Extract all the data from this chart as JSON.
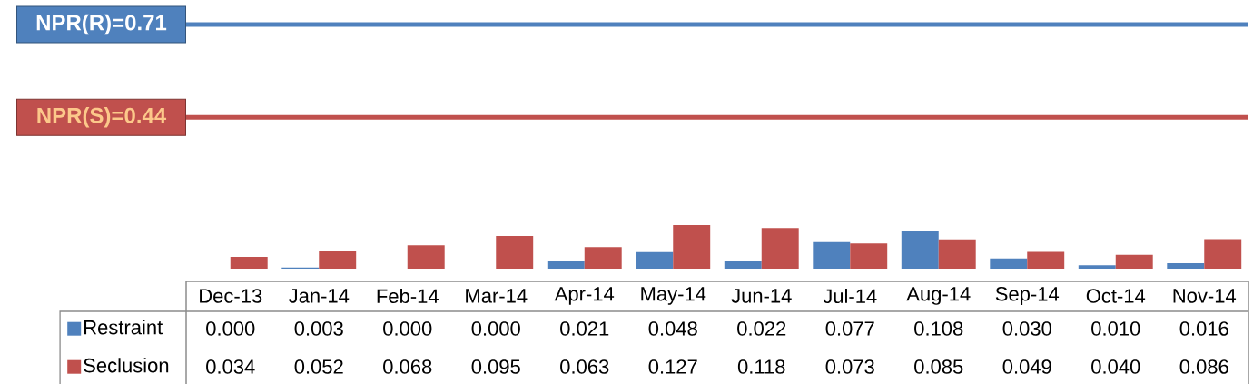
{
  "chart_data": {
    "type": "bar",
    "categories": [
      "Dec-13",
      "Jan-14",
      "Feb-14",
      "Mar-14",
      "Apr-14",
      "May-14",
      "Jun-14",
      "Jul-14",
      "Aug-14",
      "Sep-14",
      "Oct-14",
      "Nov-14"
    ],
    "series": [
      {
        "name": "Restraint",
        "color": "#4f81bd",
        "values": [
          0,
          0.003,
          0,
          0,
          0.021,
          0.048,
          0.022,
          0.077,
          0.108,
          0.03,
          0.01,
          0.016
        ],
        "value_labels": [
          "0.000",
          "0.003",
          "0.000",
          "0.000",
          "0.021",
          "0.048",
          "0.022",
          "0.077",
          "0.108",
          "0.030",
          "0.010",
          "0.016"
        ]
      },
      {
        "name": "Seclusion",
        "color": "#c0504d",
        "values": [
          0.034,
          0.052,
          0.068,
          0.095,
          0.063,
          0.127,
          0.118,
          0.073,
          0.085,
          0.049,
          0.04,
          0.086
        ],
        "value_labels": [
          "0.034",
          "0.052",
          "0.068",
          "0.095",
          "0.063",
          "0.127",
          "0.118",
          "0.073",
          "0.085",
          "0.049",
          "0.040",
          "0.086"
        ]
      }
    ],
    "ref_lines": [
      {
        "axis": "y",
        "value": 0.71,
        "label": "NPR(R)=0.71",
        "color": "#4f81bd"
      },
      {
        "axis": "y",
        "value": 0.44,
        "label": "NPR(S)=0.44",
        "color": "#c0504d"
      }
    ],
    "legend": "bottom left"
  }
}
